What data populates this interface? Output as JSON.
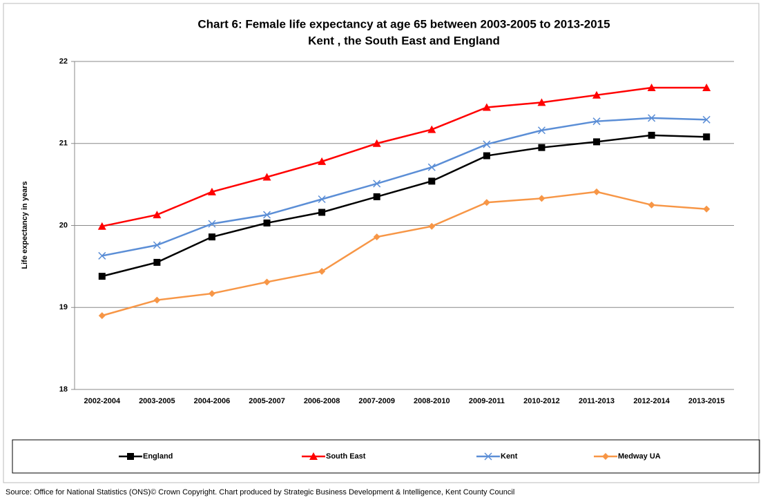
{
  "chart_data": {
    "type": "line",
    "title": "Chart 6: Female life expectancy at age 65 between 2003-2005 to 2013-2015",
    "subtitle": "Kent , the South East and England",
    "y_label": "Life expectancy in years",
    "categories": [
      "2002-2004",
      "2003-2005",
      "2004-2006",
      "2005-2007",
      "2006-2008",
      "2007-2009",
      "2008-2010",
      "2009-2011",
      "2010-2012",
      "2011-2013",
      "2012-2014",
      "2013-2015"
    ],
    "series": [
      {
        "name": "England",
        "color": "#000000",
        "marker": "square",
        "values": [
          19.38,
          19.55,
          19.86,
          20.03,
          20.16,
          20.35,
          20.54,
          20.85,
          20.95,
          21.02,
          21.1,
          21.08
        ]
      },
      {
        "name": "South East",
        "color": "#ff0000",
        "marker": "triangle",
        "values": [
          19.99,
          20.13,
          20.41,
          20.59,
          20.78,
          21.0,
          21.17,
          21.44,
          21.5,
          21.59,
          21.68,
          21.68
        ]
      },
      {
        "name": "Kent",
        "color": "#5b8ed6",
        "marker": "x",
        "values": [
          19.63,
          19.76,
          20.02,
          20.13,
          20.32,
          20.51,
          20.71,
          20.99,
          21.16,
          21.27,
          21.31,
          21.29
        ]
      },
      {
        "name": "Medway UA",
        "color": "#f79646",
        "marker": "diamond",
        "values": [
          18.9,
          19.09,
          19.17,
          19.31,
          19.44,
          19.86,
          19.99,
          20.28,
          20.33,
          20.41,
          20.25,
          20.2
        ]
      }
    ],
    "ylim": [
      18,
      22
    ],
    "yticks": [
      18,
      19,
      20,
      21,
      22
    ],
    "grid": true,
    "legend": "bottom",
    "source": "Source: Office for National Statistics (ONS)© Crown Copyright.   Chart produced by  Strategic Business Development & Intelligence,  Kent County Council"
  }
}
